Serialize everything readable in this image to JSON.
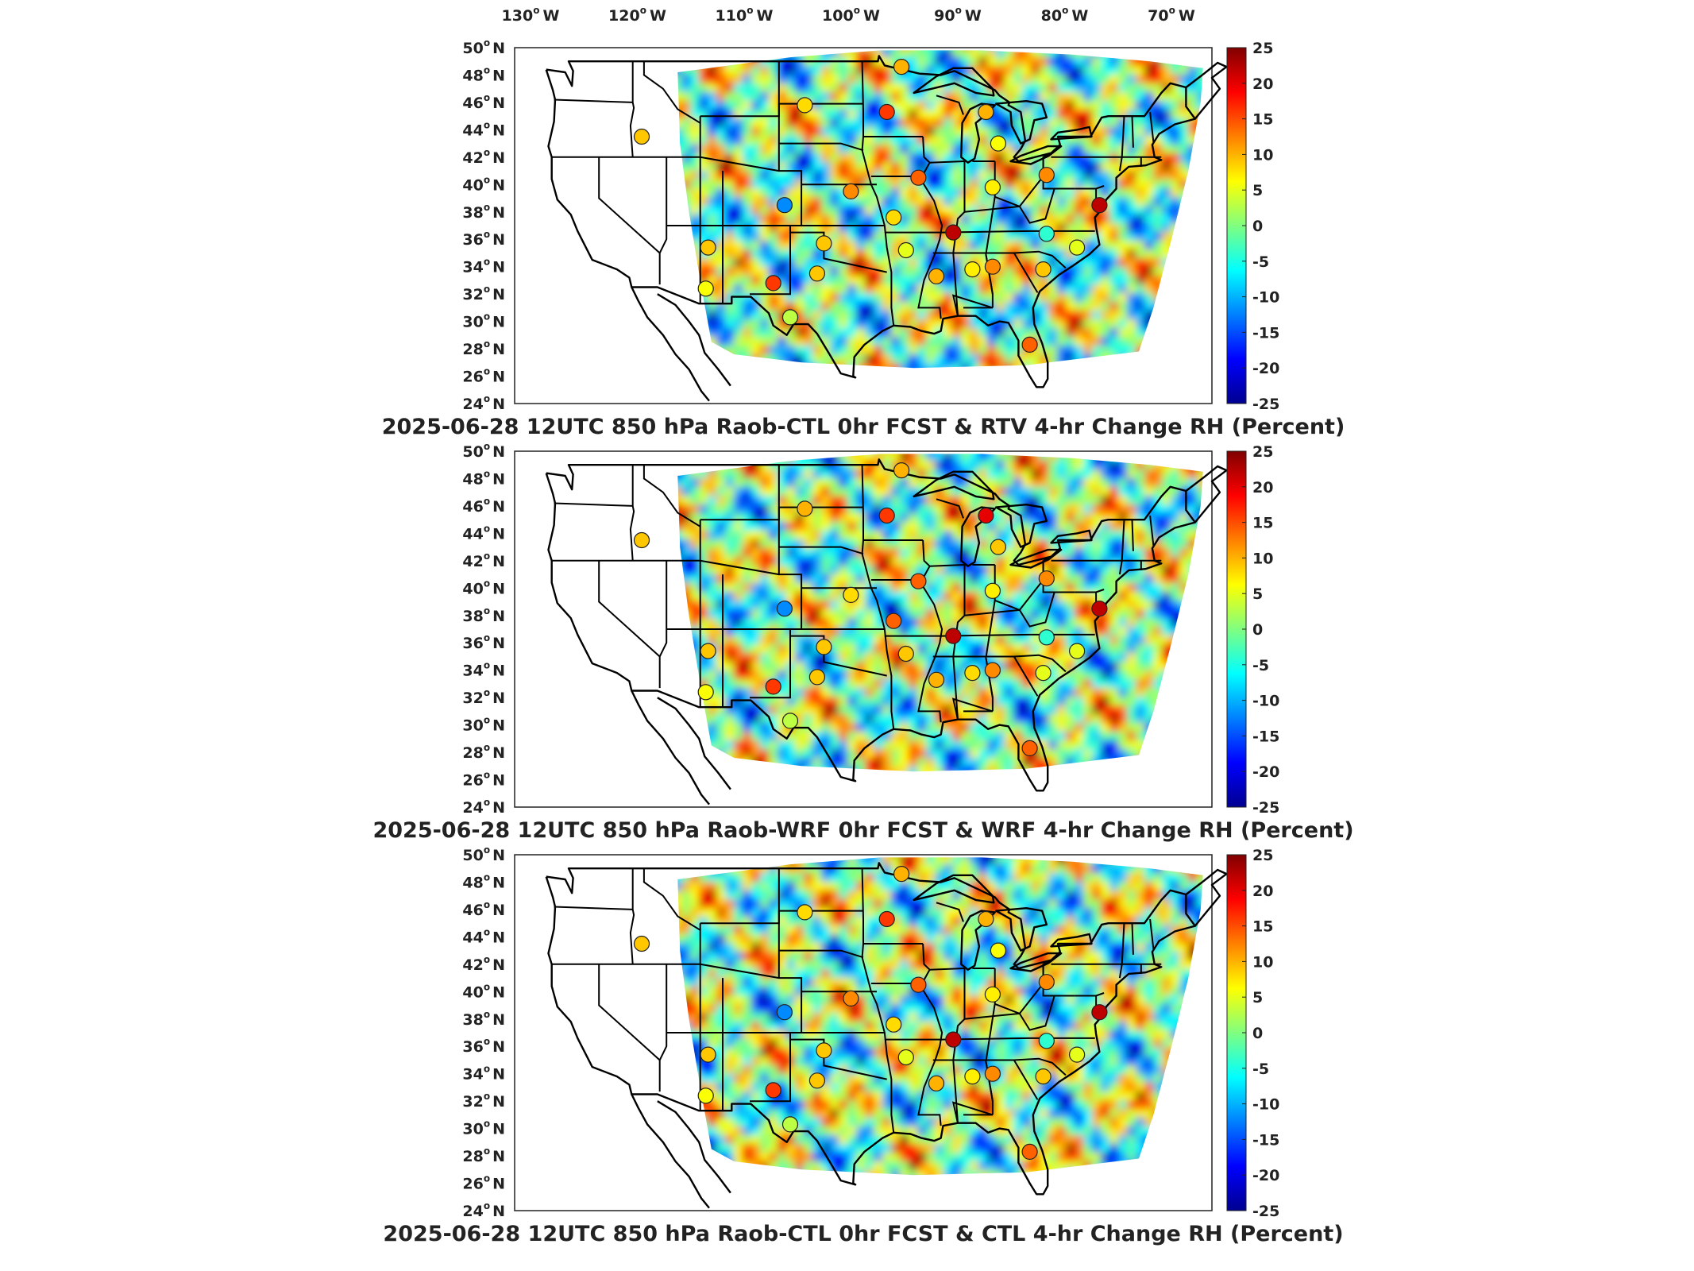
{
  "figure": {
    "top_lon_labels": [
      "130",
      "120",
      "110",
      "100",
      "90",
      "80",
      "70"
    ],
    "lon_hemisphere": "W",
    "lat_labels": [
      "50",
      "48",
      "46",
      "44",
      "42",
      "40",
      "38",
      "36",
      "34",
      "32",
      "30",
      "28",
      "26",
      "24"
    ],
    "lat_hemisphere": "N",
    "degree_symbol": "o",
    "colorbar": {
      "ticks": [
        "25",
        "20",
        "15",
        "10",
        "5",
        "0",
        "-5",
        "-10",
        "-15",
        "-20",
        "-25"
      ],
      "range": [
        -25,
        25
      ],
      "colormap": "jet",
      "colors": [
        "#00008f",
        "#0000ff",
        "#0080ff",
        "#00ffff",
        "#80ff80",
        "#ffff00",
        "#ff8000",
        "#ff0000",
        "#800000"
      ]
    }
  },
  "panels": [
    {
      "title": "2025-06-28 12UTC 850 hPa Raob-CTL 0hr FCST & RTV 4-hr Change RH (Percent)",
      "stations": [
        {
          "lon": -101.7,
          "lat": 45.8,
          "value": 8
        },
        {
          "lon": -94.4,
          "lat": 45.3,
          "value": 16
        },
        {
          "lon": -93.1,
          "lat": 48.6,
          "value": 10
        },
        {
          "lon": -85.6,
          "lat": 45.3,
          "value": 10
        },
        {
          "lon": -84.5,
          "lat": 43.0,
          "value": 6
        },
        {
          "lon": -116.2,
          "lat": 43.5,
          "value": 9
        },
        {
          "lon": -97.6,
          "lat": 39.5,
          "value": 12
        },
        {
          "lon": -91.6,
          "lat": 40.5,
          "value": 14
        },
        {
          "lon": -85.0,
          "lat": 39.8,
          "value": 7
        },
        {
          "lon": -80.2,
          "lat": 40.7,
          "value": 12
        },
        {
          "lon": -75.5,
          "lat": 38.5,
          "value": 22
        },
        {
          "lon": -103.5,
          "lat": 38.5,
          "value": -12
        },
        {
          "lon": -93.8,
          "lat": 37.6,
          "value": 8
        },
        {
          "lon": -88.5,
          "lat": 36.5,
          "value": 22
        },
        {
          "lon": -80.2,
          "lat": 36.4,
          "value": -4
        },
        {
          "lon": -100.0,
          "lat": 35.7,
          "value": 9
        },
        {
          "lon": -92.7,
          "lat": 35.2,
          "value": 5
        },
        {
          "lon": -110.3,
          "lat": 35.4,
          "value": 9
        },
        {
          "lon": -100.6,
          "lat": 33.5,
          "value": 9
        },
        {
          "lon": -90.0,
          "lat": 33.3,
          "value": 10
        },
        {
          "lon": -86.8,
          "lat": 33.8,
          "value": 7
        },
        {
          "lon": -85.0,
          "lat": 34.0,
          "value": 12
        },
        {
          "lon": -80.5,
          "lat": 33.8,
          "value": 9
        },
        {
          "lon": -77.5,
          "lat": 35.4,
          "value": 5
        },
        {
          "lon": -104.5,
          "lat": 32.8,
          "value": 16
        },
        {
          "lon": -110.5,
          "lat": 32.4,
          "value": 6
        },
        {
          "lon": -103.0,
          "lat": 30.3,
          "value": 3
        },
        {
          "lon": -81.7,
          "lat": 28.3,
          "value": 14
        }
      ]
    },
    {
      "title": "2025-06-28 12UTC 850 hPa Raob-WRF 0hr FCST & WRF 4-hr Change RH (Percent)",
      "stations": [
        {
          "lon": -101.7,
          "lat": 45.8,
          "value": 10
        },
        {
          "lon": -94.4,
          "lat": 45.3,
          "value": 16
        },
        {
          "lon": -93.1,
          "lat": 48.6,
          "value": 10
        },
        {
          "lon": -85.6,
          "lat": 45.3,
          "value": 20
        },
        {
          "lon": -84.5,
          "lat": 43.0,
          "value": 9
        },
        {
          "lon": -116.2,
          "lat": 43.5,
          "value": 9
        },
        {
          "lon": -97.6,
          "lat": 39.5,
          "value": 8
        },
        {
          "lon": -91.6,
          "lat": 40.5,
          "value": 14
        },
        {
          "lon": -85.0,
          "lat": 39.8,
          "value": 7
        },
        {
          "lon": -80.2,
          "lat": 40.7,
          "value": 12
        },
        {
          "lon": -75.5,
          "lat": 38.5,
          "value": 22
        },
        {
          "lon": -103.5,
          "lat": 38.5,
          "value": -12
        },
        {
          "lon": -93.8,
          "lat": 37.6,
          "value": 14
        },
        {
          "lon": -88.5,
          "lat": 36.5,
          "value": 22
        },
        {
          "lon": -80.2,
          "lat": 36.4,
          "value": -4
        },
        {
          "lon": -100.0,
          "lat": 35.7,
          "value": 9
        },
        {
          "lon": -92.7,
          "lat": 35.2,
          "value": 9
        },
        {
          "lon": -110.3,
          "lat": 35.4,
          "value": 9
        },
        {
          "lon": -100.6,
          "lat": 33.5,
          "value": 9
        },
        {
          "lon": -90.0,
          "lat": 33.3,
          "value": 10
        },
        {
          "lon": -86.8,
          "lat": 33.8,
          "value": 8
        },
        {
          "lon": -85.0,
          "lat": 34.0,
          "value": 12
        },
        {
          "lon": -80.5,
          "lat": 33.8,
          "value": 5
        },
        {
          "lon": -77.5,
          "lat": 35.4,
          "value": 5
        },
        {
          "lon": -104.5,
          "lat": 32.8,
          "value": 16
        },
        {
          "lon": -110.5,
          "lat": 32.4,
          "value": 6
        },
        {
          "lon": -103.0,
          "lat": 30.3,
          "value": 3
        },
        {
          "lon": -81.7,
          "lat": 28.3,
          "value": 14
        }
      ]
    },
    {
      "title": "2025-06-28 12UTC 850 hPa Raob-CTL 0hr FCST & CTL 4-hr Change RH (Percent)",
      "stations": [
        {
          "lon": -101.7,
          "lat": 45.8,
          "value": 8
        },
        {
          "lon": -94.4,
          "lat": 45.3,
          "value": 16
        },
        {
          "lon": -93.1,
          "lat": 48.6,
          "value": 10
        },
        {
          "lon": -85.6,
          "lat": 45.3,
          "value": 10
        },
        {
          "lon": -84.5,
          "lat": 43.0,
          "value": 6
        },
        {
          "lon": -116.2,
          "lat": 43.5,
          "value": 9
        },
        {
          "lon": -97.6,
          "lat": 39.5,
          "value": 12
        },
        {
          "lon": -91.6,
          "lat": 40.5,
          "value": 14
        },
        {
          "lon": -85.0,
          "lat": 39.8,
          "value": 7
        },
        {
          "lon": -80.2,
          "lat": 40.7,
          "value": 12
        },
        {
          "lon": -75.5,
          "lat": 38.5,
          "value": 22
        },
        {
          "lon": -103.5,
          "lat": 38.5,
          "value": -12
        },
        {
          "lon": -93.8,
          "lat": 37.6,
          "value": 8
        },
        {
          "lon": -88.5,
          "lat": 36.5,
          "value": 22
        },
        {
          "lon": -80.2,
          "lat": 36.4,
          "value": -4
        },
        {
          "lon": -100.0,
          "lat": 35.7,
          "value": 9
        },
        {
          "lon": -92.7,
          "lat": 35.2,
          "value": 5
        },
        {
          "lon": -110.3,
          "lat": 35.4,
          "value": 9
        },
        {
          "lon": -100.6,
          "lat": 33.5,
          "value": 9
        },
        {
          "lon": -90.0,
          "lat": 33.3,
          "value": 10
        },
        {
          "lon": -86.8,
          "lat": 33.8,
          "value": 7
        },
        {
          "lon": -85.0,
          "lat": 34.0,
          "value": 12
        },
        {
          "lon": -80.5,
          "lat": 33.8,
          "value": 9
        },
        {
          "lon": -77.5,
          "lat": 35.4,
          "value": 5
        },
        {
          "lon": -104.5,
          "lat": 32.8,
          "value": 16
        },
        {
          "lon": -110.5,
          "lat": 32.4,
          "value": 6
        },
        {
          "lon": -103.0,
          "lat": 30.3,
          "value": 3
        },
        {
          "lon": -81.7,
          "lat": 28.3,
          "value": 14
        }
      ]
    }
  ]
}
